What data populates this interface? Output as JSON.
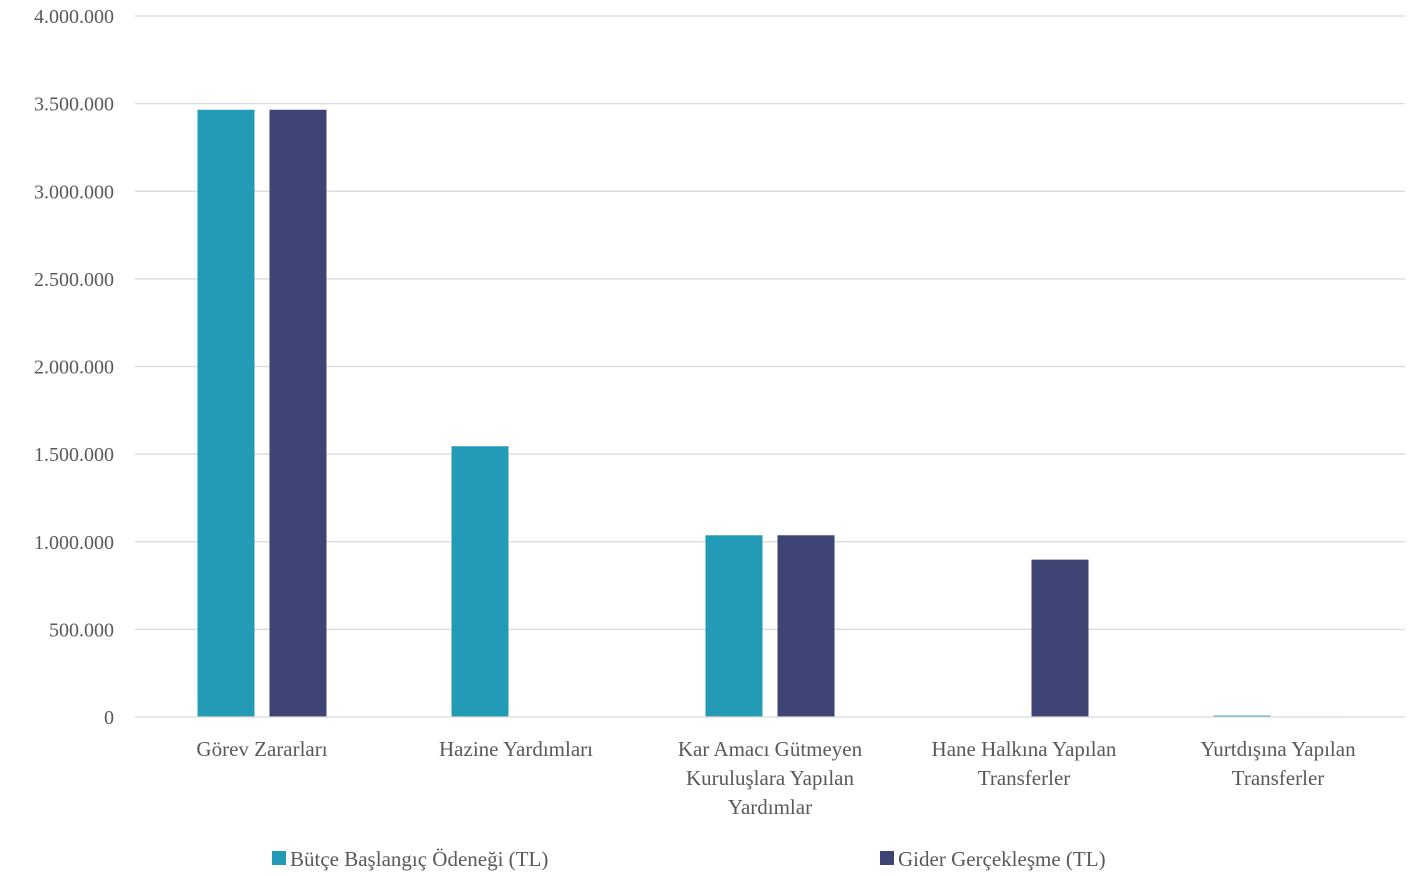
{
  "chart_data": {
    "type": "bar",
    "categories": [
      [
        "Görev Zararları"
      ],
      [
        "Hazine Yardımları"
      ],
      [
        "Kar Amacı Gütmeyen",
        "Kuruluşlara Yapılan",
        "Yardımlar"
      ],
      [
        "Hane Halkına Yapılan",
        "Transferler"
      ],
      [
        "Yurtdışına Yapılan",
        "Transferler"
      ]
    ],
    "series": [
      {
        "name": "Bütçe Başlangıç Ödeneği (TL)",
        "color": "#249BB6",
        "values": [
          3465000,
          1545000,
          1037000,
          0,
          8000
        ]
      },
      {
        "name": "Gider Gerçekleşme (TL)",
        "color": "#3E4473",
        "values": [
          3465000,
          0,
          1037000,
          898000,
          3000
        ]
      }
    ],
    "ylim": [
      0,
      4000000
    ],
    "yticks": [
      0,
      500000,
      1000000,
      1500000,
      2000000,
      2500000,
      3000000,
      3500000,
      4000000
    ],
    "ytick_labels": [
      "0",
      "500.000",
      "1.000.000",
      "1.500.000",
      "2.000.000",
      "2.500.000",
      "3.000.000",
      "3.500.000",
      "4.000.000"
    ],
    "grid": true,
    "legend_position": "bottom",
    "title": "",
    "xlabel": "",
    "ylabel": ""
  }
}
